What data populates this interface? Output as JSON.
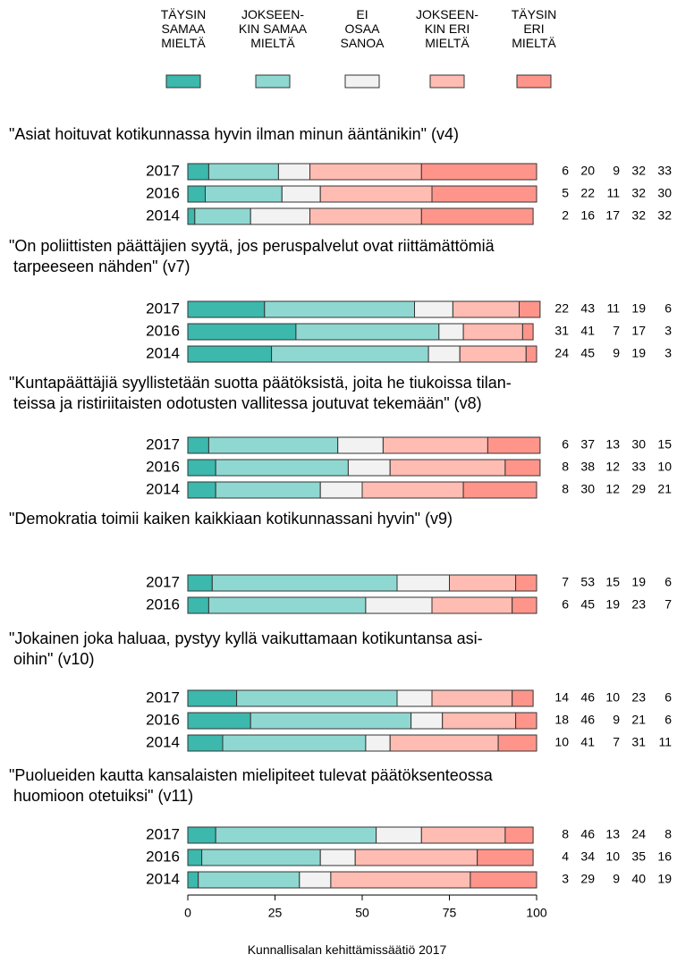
{
  "chart_data": {
    "type": "stacked-bar",
    "series": [
      {
        "name": "TÄYSIN\nSAMAA\nMIELTÄ",
        "color": "#3cb8ad"
      },
      {
        "name": "JOKSEEN-\nKIN SAMAA\nMIELTÄ",
        "color": "#8fd8d2"
      },
      {
        "name": "EI\nOSAA\nSANOA",
        "color": "#f2f2f2"
      },
      {
        "name": "JOKSEEN-\nKIN ERI\nMIELTÄ",
        "color": "#ffbcb2"
      },
      {
        "name": "TÄYSIN\nERI\nMIELTÄ",
        "color": "#ff958a"
      }
    ],
    "groups": [
      {
        "title": "\"Asiat hoituvat kotikunnassa hyvin ilman minun ääntänikin\" (v4)",
        "categories": [
          "2017",
          "2016",
          "2014"
        ],
        "values": [
          [
            6,
            20,
            9,
            32,
            33
          ],
          [
            5,
            22,
            11,
            32,
            30
          ],
          [
            2,
            16,
            17,
            32,
            32
          ]
        ]
      },
      {
        "title": "\"On poliittisten päättäjien syytä, jos peruspalvelut ovat riittämättömiä\n tarpeeseen nähden\" (v7)",
        "categories": [
          "2017",
          "2016",
          "2014"
        ],
        "values": [
          [
            22,
            43,
            11,
            19,
            6
          ],
          [
            31,
            41,
            7,
            17,
            3
          ],
          [
            24,
            45,
            9,
            19,
            3
          ]
        ]
      },
      {
        "title": "\"Kuntapäättäjiä syyllistetään suotta päätöksistä, joita he tiukoissa tilan-\n teissa ja ristiriitaisten odotusten vallitessa joutuvat tekemään\" (v8)",
        "categories": [
          "2017",
          "2016",
          "2014"
        ],
        "values": [
          [
            6,
            37,
            13,
            30,
            15
          ],
          [
            8,
            38,
            12,
            33,
            10
          ],
          [
            8,
            30,
            12,
            29,
            21
          ]
        ]
      },
      {
        "title": "\"Demokratia toimii kaiken kaikkiaan kotikunnassani hyvin\" (v9)",
        "categories": [
          "2017",
          "2016"
        ],
        "values": [
          [
            7,
            53,
            15,
            19,
            6
          ],
          [
            6,
            45,
            19,
            23,
            7
          ]
        ]
      },
      {
        "title": "\"Jokainen joka haluaa, pystyy kyllä vaikuttamaan kotikuntansa asi-\n oihin\" (v10)",
        "categories": [
          "2017",
          "2016",
          "2014"
        ],
        "values": [
          [
            14,
            46,
            10,
            23,
            6
          ],
          [
            18,
            46,
            9,
            21,
            6
          ],
          [
            10,
            41,
            7,
            31,
            11
          ]
        ]
      },
      {
        "title": "\"Puolueiden kautta kansalaisten mielipiteet tulevat päätöksenteossa\n huomioon otetuiksi\" (v11)",
        "categories": [
          "2017",
          "2016",
          "2014"
        ],
        "values": [
          [
            8,
            46,
            13,
            24,
            8
          ],
          [
            4,
            34,
            10,
            35,
            16
          ],
          [
            3,
            29,
            9,
            40,
            19
          ]
        ]
      }
    ],
    "xlim": [
      0,
      100
    ],
    "xticks": [
      0,
      25,
      50,
      75,
      100
    ]
  },
  "footer": "Kunnallisalan kehittämissäätiö 2017"
}
